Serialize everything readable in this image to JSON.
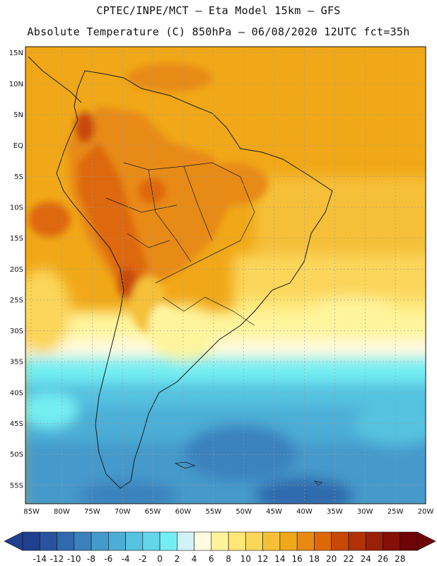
{
  "header": {
    "line1": "CPTEC/INPE/MCT –  Eta Model 15km – GFS",
    "line2": "Absolute Temperature (C) 850hPa – 06/08/2020 12UTC fct=35h"
  },
  "map": {
    "lat_labels": [
      "15N",
      "10N",
      "5N",
      "EQ",
      "5S",
      "10S",
      "15S",
      "20S",
      "25S",
      "30S",
      "35S",
      "40S",
      "45S",
      "50S",
      "55S"
    ],
    "lon_labels": [
      "85W",
      "80W",
      "75W",
      "70W",
      "65W",
      "60W",
      "55W",
      "50W",
      "45W",
      "40W",
      "35W",
      "30W",
      "25W",
      "20W"
    ],
    "extent": {
      "lon": [
        -86,
        -20
      ],
      "lat": [
        -58,
        16
      ]
    }
  },
  "colorbar": {
    "labels": [
      "-14",
      "-12",
      "-10",
      "-8",
      "-6",
      "-4",
      "-2",
      "0",
      "2",
      "4",
      "6",
      "8",
      "10",
      "12",
      "14",
      "16",
      "18",
      "20",
      "22",
      "24",
      "26",
      "28"
    ],
    "colors": [
      "#1f3f8f",
      "#28549f",
      "#2f6aae",
      "#3a82be",
      "#449acb",
      "#4caed6",
      "#55c2e0",
      "#63d6ea",
      "#74eef2",
      "#d2f2fa",
      "#fffbe0",
      "#fff49c",
      "#ffe676",
      "#fbd65a",
      "#f5c038",
      "#f0a818",
      "#e88a12",
      "#de6808",
      "#c84808",
      "#b23208",
      "#9a2008",
      "#841008",
      "#6e0408"
    ]
  }
}
